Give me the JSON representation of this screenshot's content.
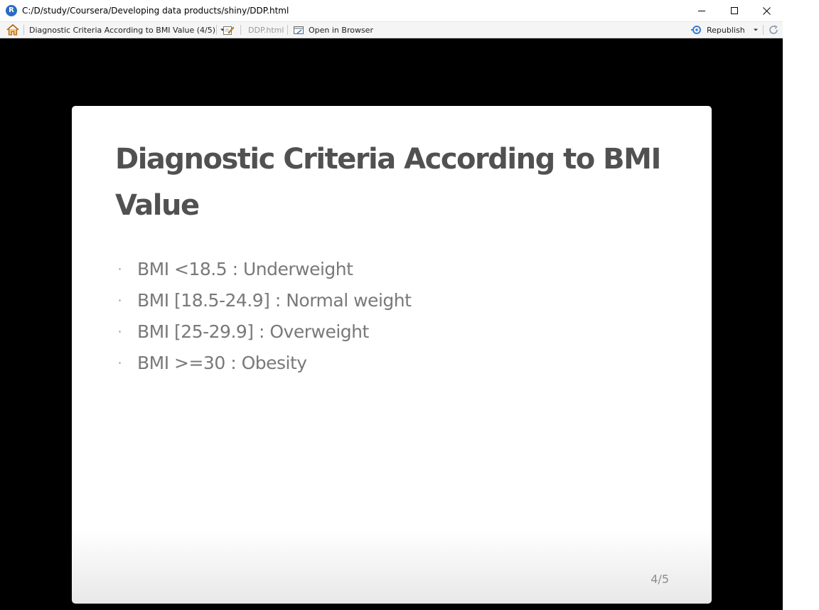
{
  "window": {
    "title": "C:/D/study/Coursera/Developing data products/shiny/DDP.html",
    "app_icon_letter": "R",
    "controls": {
      "minimize": "minimize-icon",
      "maximize": "maximize-icon",
      "close": "close-icon"
    }
  },
  "toolbar": {
    "home_icon": "home-icon",
    "slide_selector": "Diagnostic Criteria According to BMI Value (4/5)",
    "edit_icon": "edit-icon",
    "file_name": "DDP.html",
    "open_in_browser": "Open in Browser",
    "publish_icon": "publish-icon",
    "republish": "Republish",
    "refresh_icon": "refresh-icon"
  },
  "slide": {
    "title": "Diagnostic Criteria According to BMI Value",
    "bullets": [
      "BMI <18.5 : Underweight",
      "BMI [18.5-24.9] : Normal weight",
      "BMI [25-29.9] : Overweight",
      "BMI >=30 : Obesity"
    ],
    "bullet_glyph": "·",
    "page_number": "4/5"
  },
  "colors": {
    "background": "#000000",
    "slide": "#ffffff",
    "title_text": "#515151",
    "body_text": "#797979",
    "accent": "#2c6bc4"
  }
}
